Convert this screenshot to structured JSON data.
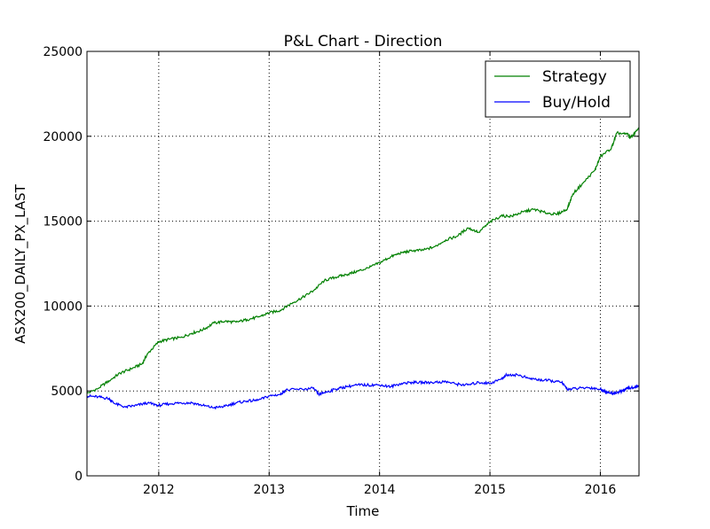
{
  "chart_data": {
    "type": "line",
    "title": "P&L Chart - Direction",
    "xlabel": "Time",
    "ylabel": "ASX200_DAILY_PX_LAST",
    "xlim": [
      2011.35,
      2016.35
    ],
    "ylim": [
      0,
      25000
    ],
    "x_ticks": [
      {
        "value": 2012,
        "label": "2012"
      },
      {
        "value": 2013,
        "label": "2013"
      },
      {
        "value": 2014,
        "label": "2014"
      },
      {
        "value": 2015,
        "label": "2015"
      },
      {
        "value": 2016,
        "label": "2016"
      }
    ],
    "y_ticks": [
      {
        "value": 0,
        "label": "0"
      },
      {
        "value": 5000,
        "label": "5000"
      },
      {
        "value": 10000,
        "label": "10000"
      },
      {
        "value": 15000,
        "label": "15000"
      },
      {
        "value": 20000,
        "label": "20000"
      },
      {
        "value": 25000,
        "label": "25000"
      }
    ],
    "grid": true,
    "legend_position": "top-right",
    "series": [
      {
        "name": "Strategy",
        "color": "#008000",
        "points": [
          [
            2011.35,
            4850
          ],
          [
            2011.45,
            5150
          ],
          [
            2011.55,
            5600
          ],
          [
            2011.65,
            6050
          ],
          [
            2011.75,
            6300
          ],
          [
            2011.85,
            6600
          ],
          [
            2011.9,
            7200
          ],
          [
            2012.0,
            7900
          ],
          [
            2012.1,
            8050
          ],
          [
            2012.2,
            8150
          ],
          [
            2012.3,
            8400
          ],
          [
            2012.4,
            8600
          ],
          [
            2012.5,
            9000
          ],
          [
            2012.6,
            9100
          ],
          [
            2012.7,
            9050
          ],
          [
            2012.8,
            9200
          ],
          [
            2012.9,
            9350
          ],
          [
            2013.0,
            9600
          ],
          [
            2013.1,
            9750
          ],
          [
            2013.2,
            10150
          ],
          [
            2013.3,
            10500
          ],
          [
            2013.4,
            10900
          ],
          [
            2013.5,
            11500
          ],
          [
            2013.6,
            11700
          ],
          [
            2013.7,
            11850
          ],
          [
            2013.8,
            12050
          ],
          [
            2013.9,
            12250
          ],
          [
            2014.0,
            12550
          ],
          [
            2014.1,
            12900
          ],
          [
            2014.2,
            13150
          ],
          [
            2014.3,
            13250
          ],
          [
            2014.4,
            13300
          ],
          [
            2014.5,
            13500
          ],
          [
            2014.6,
            13900
          ],
          [
            2014.7,
            14100
          ],
          [
            2014.8,
            14600
          ],
          [
            2014.9,
            14350
          ],
          [
            2015.0,
            14950
          ],
          [
            2015.1,
            15300
          ],
          [
            2015.2,
            15300
          ],
          [
            2015.3,
            15550
          ],
          [
            2015.4,
            15700
          ],
          [
            2015.5,
            15500
          ],
          [
            2015.6,
            15400
          ],
          [
            2015.7,
            15700
          ],
          [
            2015.75,
            16600
          ],
          [
            2015.85,
            17300
          ],
          [
            2015.95,
            18000
          ],
          [
            2016.0,
            18800
          ],
          [
            2016.1,
            19300
          ],
          [
            2016.15,
            20200
          ],
          [
            2016.25,
            20100
          ],
          [
            2016.27,
            19900
          ],
          [
            2016.35,
            20450
          ]
        ]
      },
      {
        "name": "Buy/Hold",
        "color": "#0000ff",
        "points": [
          [
            2011.35,
            4700
          ],
          [
            2011.45,
            4650
          ],
          [
            2011.55,
            4550
          ],
          [
            2011.6,
            4250
          ],
          [
            2011.7,
            4050
          ],
          [
            2011.8,
            4150
          ],
          [
            2011.9,
            4300
          ],
          [
            2012.0,
            4150
          ],
          [
            2012.1,
            4250
          ],
          [
            2012.2,
            4300
          ],
          [
            2012.3,
            4300
          ],
          [
            2012.4,
            4150
          ],
          [
            2012.5,
            4000
          ],
          [
            2012.6,
            4100
          ],
          [
            2012.7,
            4300
          ],
          [
            2012.8,
            4400
          ],
          [
            2012.9,
            4450
          ],
          [
            2013.0,
            4700
          ],
          [
            2013.1,
            4800
          ],
          [
            2013.15,
            5050
          ],
          [
            2013.3,
            5100
          ],
          [
            2013.4,
            5150
          ],
          [
            2013.45,
            4800
          ],
          [
            2013.5,
            4900
          ],
          [
            2013.6,
            5100
          ],
          [
            2013.7,
            5250
          ],
          [
            2013.8,
            5350
          ],
          [
            2013.9,
            5350
          ],
          [
            2014.0,
            5350
          ],
          [
            2014.1,
            5250
          ],
          [
            2014.2,
            5450
          ],
          [
            2014.3,
            5500
          ],
          [
            2014.4,
            5500
          ],
          [
            2014.5,
            5500
          ],
          [
            2014.6,
            5550
          ],
          [
            2014.7,
            5400
          ],
          [
            2014.8,
            5350
          ],
          [
            2014.9,
            5500
          ],
          [
            2015.0,
            5450
          ],
          [
            2015.1,
            5700
          ],
          [
            2015.15,
            5950
          ],
          [
            2015.25,
            5950
          ],
          [
            2015.35,
            5750
          ],
          [
            2015.45,
            5650
          ],
          [
            2015.55,
            5600
          ],
          [
            2015.65,
            5500
          ],
          [
            2015.7,
            5100
          ],
          [
            2015.8,
            5150
          ],
          [
            2015.9,
            5200
          ],
          [
            2016.0,
            5100
          ],
          [
            2016.05,
            4950
          ],
          [
            2016.1,
            4850
          ],
          [
            2016.15,
            4900
          ],
          [
            2016.2,
            5000
          ],
          [
            2016.25,
            5150
          ],
          [
            2016.3,
            5200
          ],
          [
            2016.35,
            5300
          ]
        ]
      }
    ]
  }
}
